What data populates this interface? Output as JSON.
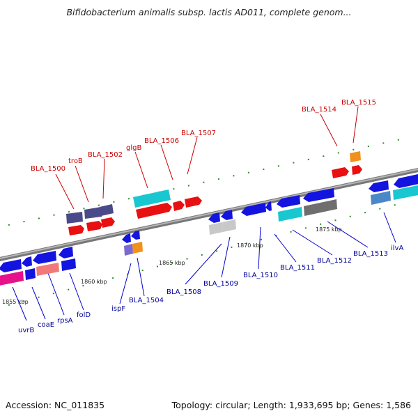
{
  "title": "Bifidobacterium animalis subsp. lactis AD011, complete genom...",
  "accession": "Accession: NC_011835",
  "summary": "Topology: circular; Length: 1,933,695 bp; Genes: 1,586",
  "scale_labels": [
    "1855 kbp",
    "1860 kbp",
    "1865 kbp",
    "1870 kbp",
    "1875 kbp"
  ],
  "colors": {
    "forward_label": "#cc0000",
    "reverse_label": "#000099",
    "backbone": "#888888",
    "dots": "#2a8a2a"
  },
  "forward_labels": [
    "BLA_1500",
    "troB",
    "BLA_1502",
    "glgB",
    "BLA_1506",
    "BLA_1507",
    "BLA_1514",
    "BLA_1515"
  ],
  "reverse_labels": [
    "uvrB",
    "coaE",
    "rpsA",
    "folD",
    "ispF",
    "BLA_1504",
    "BLA_1508",
    "BLA_1509",
    "BLA_1510",
    "BLA_1511",
    "BLA_1512",
    "BLA_1513",
    "ilvA"
  ]
}
